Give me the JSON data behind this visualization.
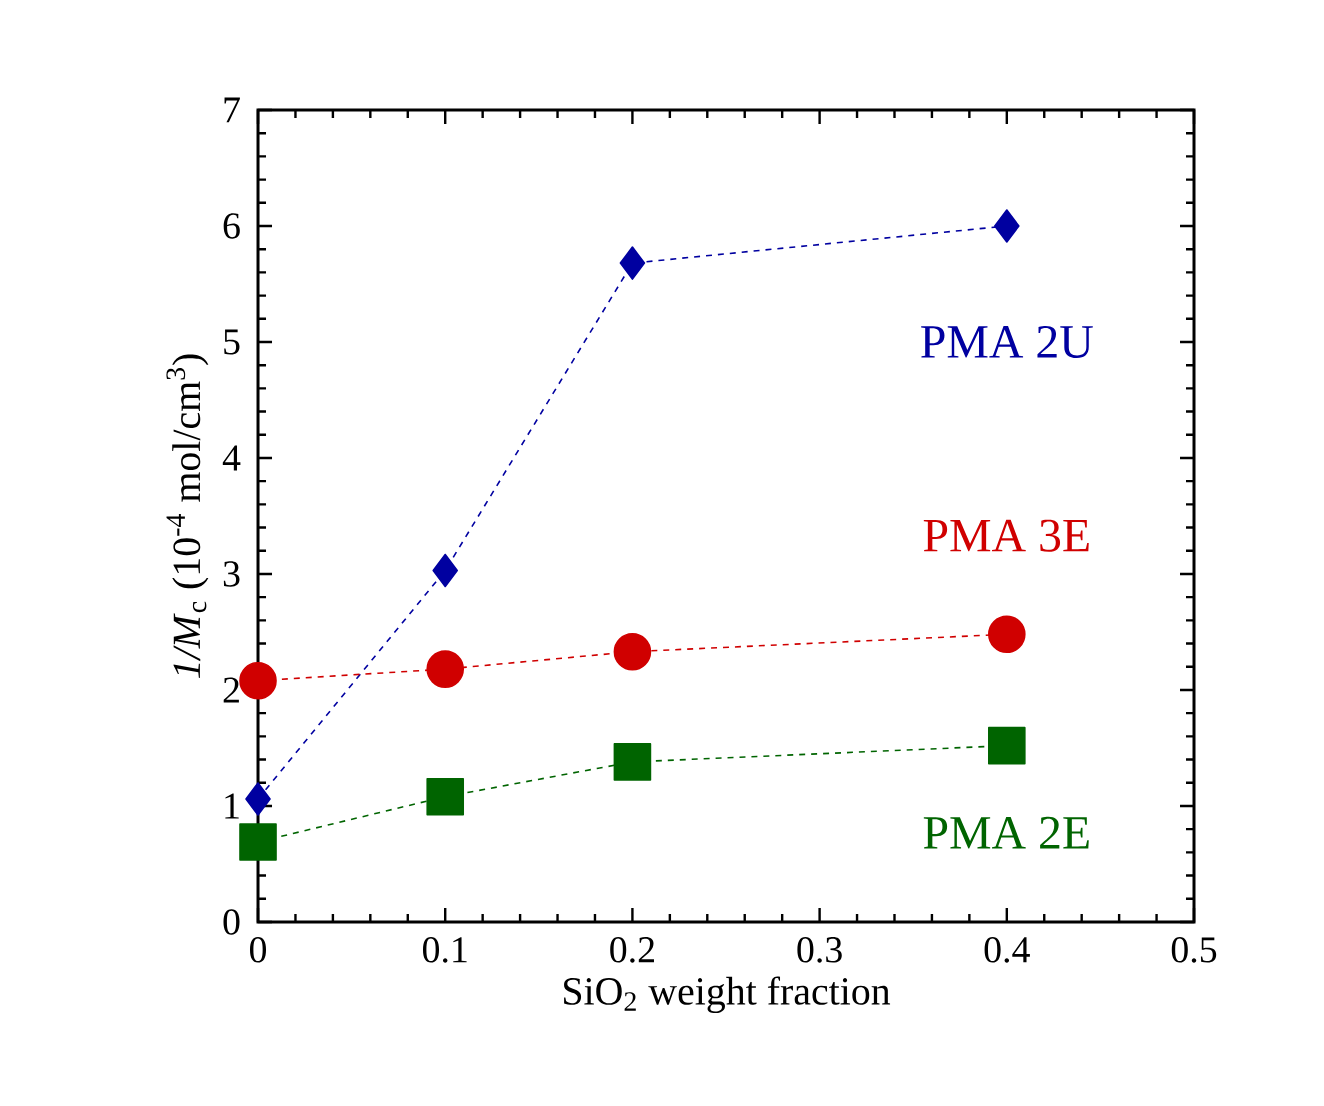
{
  "chart_data": {
    "type": "line",
    "xlabel": "SiO$_{2}$ weight fraction",
    "ylabel": "*1/M*$_{c}$ (10$^{-4}$ mol/cm$^{3}$)",
    "x": [
      0,
      0.1,
      0.2,
      0.4
    ],
    "series": [
      {
        "name": "PMA 2U",
        "color": "#0000a0",
        "marker": "diamond",
        "values": [
          1.06,
          3.03,
          5.68,
          6.0
        ]
      },
      {
        "name": "PMA 3E",
        "color": "#d00000",
        "marker": "circle",
        "values": [
          2.08,
          2.18,
          2.33,
          2.48
        ]
      },
      {
        "name": "PMA 2E",
        "color": "#006400",
        "marker": "square",
        "values": [
          0.69,
          1.08,
          1.38,
          1.52
        ]
      }
    ],
    "xlim": [
      0,
      0.5
    ],
    "xticks": [
      0,
      0.1,
      0.2,
      0.3,
      0.4,
      0.5
    ],
    "ylim": [
      0,
      7
    ],
    "yticks": [
      0,
      1,
      2,
      3,
      4,
      5,
      6,
      7
    ],
    "legend": false,
    "grid": false,
    "line_style": "dashed"
  }
}
